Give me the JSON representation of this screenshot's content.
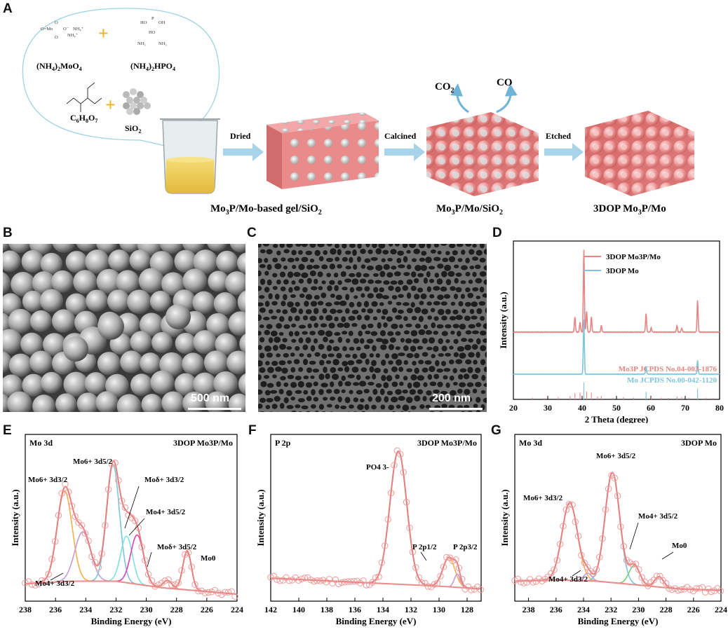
{
  "panels": {
    "A": "A",
    "B": "B",
    "C": "C",
    "D": "D",
    "E": "E",
    "F": "F",
    "G": "G"
  },
  "schematic": {
    "reagents": {
      "r1_formula": "(NH4)2MoO4",
      "r2_formula": "(NH4)2HPO4",
      "r3_formula": "C6H8O7",
      "r4_formula": "SiO2",
      "r1_struct_labels": [
        "O=Mo",
        "O−",
        "NH4+",
        "NH4+"
      ],
      "r2_struct_labels": [
        "HO",
        "P",
        "OH",
        "HO",
        "NH3",
        "NH3"
      ],
      "plus": "+"
    },
    "steps": [
      "Dried",
      "Calcined",
      "Etched"
    ],
    "gases": [
      "CO",
      "CO"
    ],
    "products": [
      "Mo3P/Mo-based gel/SiO2",
      "Mo3P/Mo/SiO2",
      "3DOP Mo3P/Mo"
    ]
  },
  "sem": {
    "B_scale": "500 nm",
    "C_scale": "200 nm"
  },
  "colors": {
    "pink": "#e98484",
    "blue": "#7ec4dc",
    "orange": "#f3b04a",
    "purple": "#c79ad8",
    "cyan": "#7fe0e0",
    "magenta": "#e040b0",
    "green": "#74d07a",
    "baseline": "#ec8d8d"
  },
  "chart_data": [
    {
      "id": "D",
      "type": "line",
      "xlabel": "2 Theta (degree)",
      "ylabel": "Intensity (a.u.)",
      "xlim": [
        20,
        80
      ],
      "xticks": [
        20,
        30,
        40,
        50,
        60,
        70,
        80
      ],
      "series": [
        {
          "name": "3DOP Mo3P/Mo",
          "color": "#e98484",
          "peaks": [
            [
              37.9,
              0.18
            ],
            [
              39.4,
              0.12
            ],
            [
              40.5,
              1.0
            ],
            [
              41.3,
              0.25
            ],
            [
              42.7,
              0.18
            ],
            [
              45.6,
              0.08
            ],
            [
              58.6,
              0.22
            ],
            [
              60.1,
              0.05
            ],
            [
              67.6,
              0.08
            ],
            [
              69.0,
              0.05
            ],
            [
              73.6,
              0.38
            ]
          ]
        },
        {
          "name": "3DOP Mo",
          "color": "#7ec4dc",
          "peaks": [
            [
              40.5,
              1.0
            ],
            [
              58.6,
              0.14
            ],
            [
              73.6,
              0.25
            ]
          ]
        }
      ],
      "references": [
        {
          "name": "Mo3P JCPDS No.04-003-1876",
          "color": "#e98484",
          "sticks": [
            [
              25.5,
              0.15
            ],
            [
              29,
              0.12
            ],
            [
              33,
              0.2
            ],
            [
              36.5,
              0.3
            ],
            [
              37.9,
              0.55
            ],
            [
              39.4,
              0.6
            ],
            [
              40.5,
              0.9
            ],
            [
              41.3,
              0.7
            ],
            [
              42.7,
              0.6
            ],
            [
              44.5,
              0.25
            ],
            [
              45.6,
              0.3
            ],
            [
              49,
              0.15
            ],
            [
              52,
              0.2
            ],
            [
              55,
              0.15
            ],
            [
              58.6,
              0.25
            ],
            [
              60.1,
              0.2
            ],
            [
              63,
              0.15
            ],
            [
              65,
              0.12
            ],
            [
              67.6,
              0.25
            ],
            [
              69,
              0.2
            ],
            [
              71,
              0.15
            ],
            [
              73.6,
              0.3
            ],
            [
              76,
              0.15
            ],
            [
              78,
              0.12
            ]
          ]
        },
        {
          "name": "Mo JCPDS No.00-042-1120",
          "color": "#7ec4dc",
          "sticks": [
            [
              40.5,
              1.0
            ],
            [
              58.6,
              0.45
            ],
            [
              73.6,
              0.65
            ]
          ]
        }
      ]
    },
    {
      "id": "E",
      "type": "line",
      "title": "Mo 3d",
      "sample": "3DOP Mo3P/Mo",
      "xlabel": "Binding Energy (eV)",
      "ylabel": "Intensity (a.u.)",
      "xlim": [
        238,
        224
      ],
      "xticks": [
        238,
        236,
        234,
        232,
        230,
        228,
        226,
        224
      ],
      "baseline": [
        [
          238,
          0.08
        ],
        [
          235,
          0.1
        ],
        [
          232,
          0.1
        ],
        [
          229,
          0.05
        ],
        [
          226,
          0.02
        ],
        [
          224,
          0.0
        ]
      ],
      "components": [
        {
          "label": "Mo6+ 3d3/2",
          "center": 235.4,
          "height": 0.7,
          "width": 0.7,
          "color": "#f3b04a"
        },
        {
          "label": "Mo4+ 3d3/2",
          "center": 234.2,
          "height": 0.38,
          "width": 0.75,
          "color": "#c79ad8"
        },
        {
          "label": "Mo6+ 3d5/2",
          "center": 232.2,
          "height": 0.9,
          "width": 0.6,
          "color": "#7ec4dc"
        },
        {
          "label": "Moδ+ 3d3/2",
          "center": 231.3,
          "height": 0.36,
          "width": 0.55,
          "color": "#7fe0e0"
        },
        {
          "label": "Mo4+ 3d5/2",
          "center": 230.6,
          "height": 0.38,
          "width": 0.6,
          "color": "#e040b0"
        },
        {
          "label": "Moδ+ 3d5/2",
          "center": 228.6,
          "height": 0.06,
          "width": 0.4,
          "color": "#e98484"
        },
        {
          "label": "Mo0",
          "center": 227.3,
          "height": 0.3,
          "width": 0.4,
          "color": "#74d07a"
        }
      ]
    },
    {
      "id": "F",
      "type": "line",
      "title": "P 2p",
      "sample": "3DOP Mo3P/Mo",
      "xlabel": "Binding Energy (eV)",
      "ylabel": "Intensity (a.u.)",
      "xlim": [
        142,
        127
      ],
      "xticks": [
        142,
        140,
        138,
        136,
        134,
        132,
        130,
        128
      ],
      "baseline": [
        [
          142,
          0.12
        ],
        [
          138,
          0.1
        ],
        [
          134,
          0.08
        ],
        [
          130,
          0.06
        ],
        [
          127,
          0.04
        ]
      ],
      "components": [
        {
          "label": "PO4 3-",
          "center": 132.9,
          "height": 1.0,
          "width": 0.85,
          "color": "#7ec4dc"
        },
        {
          "label": "P 2p1/2",
          "center": 129.3,
          "height": 0.22,
          "width": 0.6,
          "color": "#f3b04a"
        },
        {
          "label": "P 2p3/2",
          "center": 128.7,
          "height": 0.1,
          "width": 0.3,
          "color": "#c79ad8"
        }
      ]
    },
    {
      "id": "G",
      "type": "line",
      "title": "Mo 3d",
      "sample": "3DOP Mo",
      "xlabel": "Binding Energy (eV)",
      "ylabel": "Intensity (a.u.)",
      "xlim": [
        239,
        224
      ],
      "xticks": [
        238,
        236,
        234,
        232,
        230,
        228,
        226,
        224
      ],
      "baseline": [
        [
          239,
          0.1
        ],
        [
          236,
          0.11
        ],
        [
          233,
          0.1
        ],
        [
          230,
          0.07
        ],
        [
          227,
          0.04
        ],
        [
          224,
          0.03
        ]
      ],
      "components": [
        {
          "label": "Mo6+ 3d3/2",
          "center": 235.0,
          "height": 0.6,
          "width": 0.8,
          "color": "#f3b04a"
        },
        {
          "label": "Mo4+ 3d3/2",
          "center": 233.7,
          "height": 0.06,
          "width": 0.4,
          "color": "#c79ad8"
        },
        {
          "label": "Mo6+ 3d5/2",
          "center": 231.9,
          "height": 0.85,
          "width": 0.75,
          "color": "#7ec4dc"
        },
        {
          "label": "Mo4+ 3d5/2",
          "center": 230.3,
          "height": 0.15,
          "width": 0.55,
          "color": "#74d07a"
        },
        {
          "label": "Mo0",
          "center": 228.5,
          "height": 0.08,
          "width": 0.45,
          "color": "#e98484"
        }
      ]
    }
  ]
}
